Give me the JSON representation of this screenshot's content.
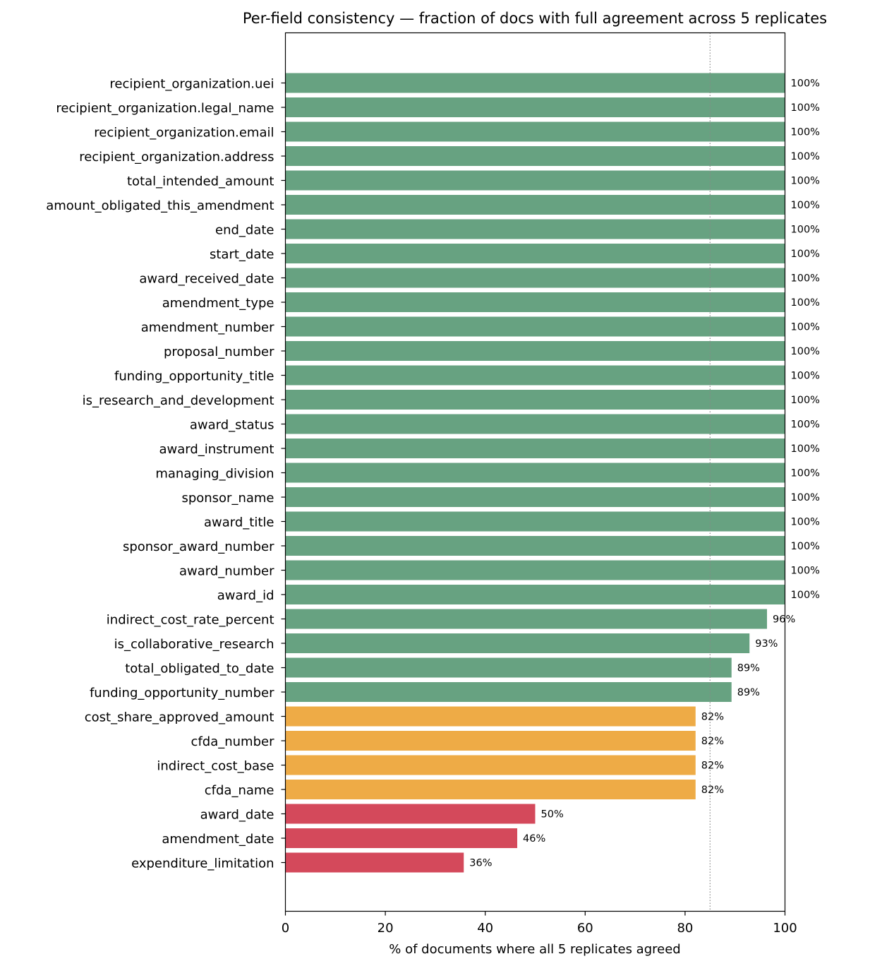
{
  "chart_data": {
    "type": "bar",
    "orientation": "horizontal",
    "title": "Per-field consistency — fraction of docs with full agreement across 5 replicates",
    "xlabel": "% of documents where all 5 replicates agreed",
    "ylabel": "",
    "xlim": [
      0,
      100
    ],
    "xticks": [
      0,
      20,
      40,
      60,
      80,
      100
    ],
    "xtick_labels": [
      "0",
      "20",
      "40",
      "60",
      "80",
      "100"
    ],
    "reference_line_x": 85,
    "grid": false,
    "colors": {
      "high": "#67a281",
      "medium": "#eeab46",
      "low": "#d4495b",
      "reference_line": "#888888"
    },
    "categories": [
      "recipient_organization.uei",
      "recipient_organization.legal_name",
      "recipient_organization.email",
      "recipient_organization.address",
      "total_intended_amount",
      "amount_obligated_this_amendment",
      "end_date",
      "start_date",
      "award_received_date",
      "amendment_type",
      "amendment_number",
      "proposal_number",
      "funding_opportunity_title",
      "is_research_and_development",
      "award_status",
      "award_instrument",
      "managing_division",
      "sponsor_name",
      "award_title",
      "sponsor_award_number",
      "award_number",
      "award_id",
      "indirect_cost_rate_percent",
      "is_collaborative_research",
      "total_obligated_to_date",
      "funding_opportunity_number",
      "cost_share_approved_amount",
      "cfda_number",
      "indirect_cost_base",
      "cfda_name",
      "award_date",
      "amendment_date",
      "expenditure_limitation"
    ],
    "values": [
      100,
      100,
      100,
      100,
      100,
      100,
      100,
      100,
      100,
      100,
      100,
      100,
      100,
      100,
      100,
      100,
      100,
      100,
      100,
      100,
      100,
      100,
      96.4,
      92.9,
      89.3,
      89.3,
      82.1,
      82.1,
      82.1,
      82.1,
      50.0,
      46.4,
      35.7
    ],
    "data_labels": [
      "100%",
      "100%",
      "100%",
      "100%",
      "100%",
      "100%",
      "100%",
      "100%",
      "100%",
      "100%",
      "100%",
      "100%",
      "100%",
      "100%",
      "100%",
      "100%",
      "100%",
      "100%",
      "100%",
      "100%",
      "100%",
      "100%",
      "96%",
      "93%",
      "89%",
      "89%",
      "82%",
      "82%",
      "82%",
      "82%",
      "50%",
      "46%",
      "36%"
    ],
    "color_groups": [
      "high",
      "high",
      "high",
      "high",
      "high",
      "high",
      "high",
      "high",
      "high",
      "high",
      "high",
      "high",
      "high",
      "high",
      "high",
      "high",
      "high",
      "high",
      "high",
      "high",
      "high",
      "high",
      "high",
      "high",
      "high",
      "high",
      "medium",
      "medium",
      "medium",
      "medium",
      "low",
      "low",
      "low"
    ]
  }
}
